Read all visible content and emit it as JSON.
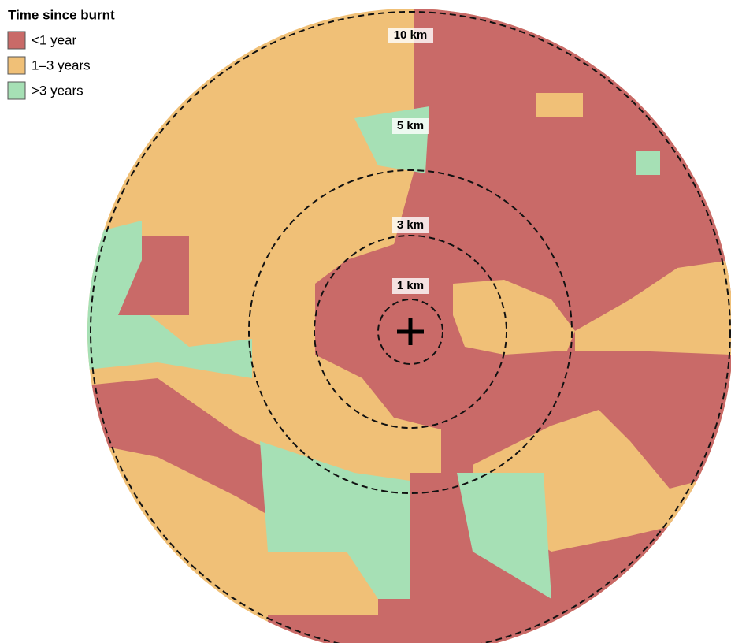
{
  "legend": {
    "title": "Time since burnt",
    "items": [
      {
        "label": "<1 year",
        "color": "#c96a68"
      },
      {
        "label": "1–3 years",
        "color": "#f0c077"
      },
      {
        "label": ">3 years",
        "color": "#a6e0b5"
      }
    ]
  },
  "rings": [
    {
      "label": "10 km"
    },
    {
      "label": "5 km"
    },
    {
      "label": "3 km"
    },
    {
      "label": "1 km"
    }
  ]
}
